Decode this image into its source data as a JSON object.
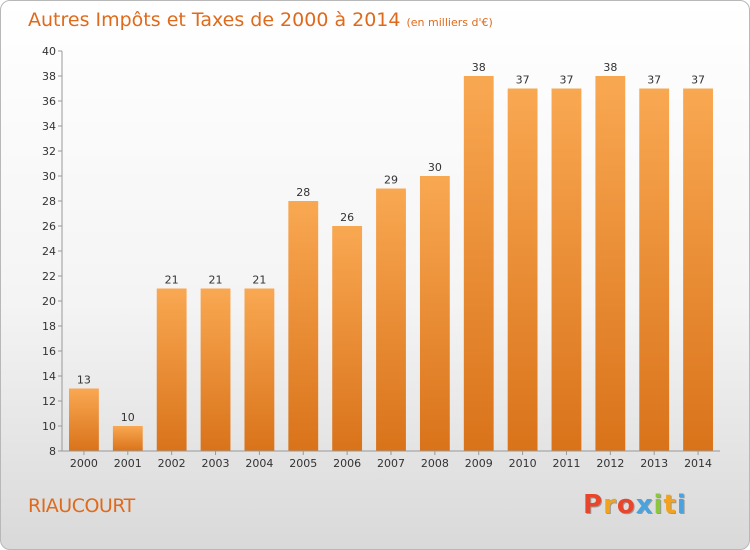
{
  "header": {
    "title": "Autres Impôts et Taxes de 2000 à 2014",
    "subtitle": "(en milliers d'€)"
  },
  "commune": "RIAUCOURT",
  "logo": {
    "text": "Proxiti",
    "colors": [
      "#e8452a",
      "#f3a21c",
      "#e8452a",
      "#4aa3df",
      "#8cc63f",
      "#f3a21c",
      "#4aa3df"
    ]
  },
  "colors": {
    "bar_top": "#f9a852",
    "bar_bottom": "#d9731a",
    "title": "#e06a1b"
  },
  "chart_data": {
    "type": "bar",
    "title": "Autres Impôts et Taxes de 2000 à 2014",
    "ylabel": "",
    "categories": [
      "2000",
      "2001",
      "2002",
      "2003",
      "2004",
      "2005",
      "2006",
      "2007",
      "2008",
      "2009",
      "2010",
      "2011",
      "2012",
      "2013",
      "2014"
    ],
    "values": [
      13,
      10,
      21,
      21,
      21,
      28,
      26,
      29,
      30,
      38,
      37,
      37,
      38,
      37,
      37
    ],
    "ylim": [
      8,
      40
    ],
    "yticks": [
      8,
      10,
      12,
      14,
      16,
      18,
      20,
      22,
      24,
      26,
      28,
      30,
      32,
      34,
      36,
      38,
      40
    ],
    "grid": false
  }
}
